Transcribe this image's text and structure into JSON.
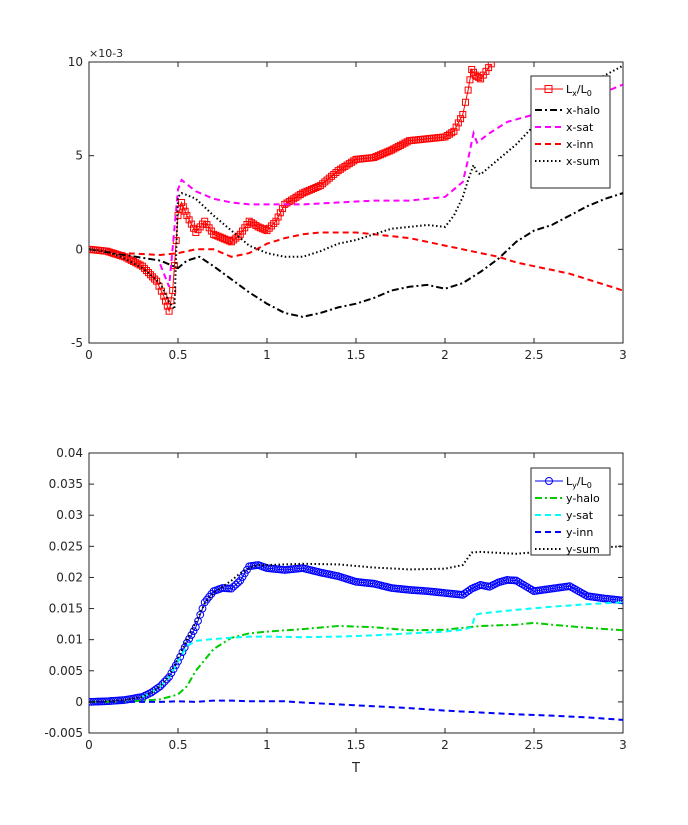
{
  "chart_data": [
    {
      "type": "line",
      "title": "",
      "xlabel": "",
      "ylabel": "",
      "exponent_label": "×10-3",
      "xlim": [
        0,
        3
      ],
      "ylim": [
        -0.005,
        0.01
      ],
      "xticks": [
        0,
        0.5,
        1,
        1.5,
        2,
        2.5,
        3
      ],
      "xtick_labels": [
        "0",
        "0.5",
        "1",
        "1.5",
        "2",
        "2.5",
        "3"
      ],
      "yticks": [
        -0.005,
        0,
        0.005,
        0.01
      ],
      "ytick_labels": [
        "-5",
        "0",
        "5",
        "10"
      ],
      "grid": false,
      "legend_position": "top-right",
      "series": [
        {
          "name": "Lx/L0",
          "name_main": "L",
          "name_sub1": "x",
          "name_mid": "/L",
          "name_sub2": "0",
          "color": "#ff0000",
          "style": "solid",
          "marker": "square",
          "x": [
            0,
            0.1,
            0.2,
            0.3,
            0.38,
            0.42,
            0.45,
            0.47,
            0.5,
            0.52,
            0.55,
            0.6,
            0.65,
            0.7,
            0.75,
            0.8,
            0.85,
            0.9,
            0.95,
            1.0,
            1.05,
            1.1,
            1.15,
            1.2,
            1.3,
            1.4,
            1.5,
            1.6,
            1.7,
            1.8,
            1.9,
            2.0,
            2.05,
            2.1,
            2.13,
            2.15,
            2.17,
            2.2,
            2.23,
            2.26
          ],
          "y": [
            0,
            -0.0001,
            -0.0004,
            -0.0009,
            -0.0017,
            -0.0025,
            -0.0033,
            -0.0022,
            0.0018,
            0.0025,
            0.0018,
            0.0009,
            0.0015,
            0.0008,
            0.0006,
            0.0004,
            0.0008,
            0.0015,
            0.0012,
            0.001,
            0.0015,
            0.0024,
            0.0027,
            0.003,
            0.0034,
            0.0042,
            0.0048,
            0.0049,
            0.0053,
            0.0058,
            0.0059,
            0.006,
            0.0063,
            0.0072,
            0.0085,
            0.0096,
            0.0093,
            0.0091,
            0.0095,
            0.0099
          ]
        },
        {
          "name": "x-halo",
          "color": "#000000",
          "style": "dashdot",
          "x": [
            0,
            0.2,
            0.4,
            0.5,
            0.55,
            0.62,
            0.7,
            0.8,
            0.9,
            1.0,
            1.1,
            1.2,
            1.3,
            1.4,
            1.5,
            1.6,
            1.7,
            1.8,
            1.9,
            2.0,
            2.1,
            2.2,
            2.3,
            2.4,
            2.5,
            2.6,
            2.7,
            2.8,
            2.9,
            3.0
          ],
          "y": [
            0,
            -0.0003,
            -0.0006,
            -0.001,
            -0.0006,
            -0.0004,
            -0.0009,
            -0.0016,
            -0.0023,
            -0.0029,
            -0.0034,
            -0.0036,
            -0.0034,
            -0.0031,
            -0.0029,
            -0.0026,
            -0.0022,
            -0.002,
            -0.0019,
            -0.0021,
            -0.0018,
            -0.0012,
            -0.0005,
            0.0004,
            0.001,
            0.0013,
            0.0018,
            0.0023,
            0.0027,
            0.003
          ]
        },
        {
          "name": "x-sat",
          "color": "#ff00ff",
          "style": "dashed",
          "x": [
            0.4,
            0.45,
            0.5,
            0.52,
            0.6,
            0.7,
            0.8,
            0.9,
            1.0,
            1.1,
            1.2,
            1.4,
            1.6,
            1.8,
            2.0,
            2.1,
            2.13,
            2.16,
            2.18,
            2.25,
            2.35,
            2.5,
            2.7,
            2.85,
            2.95,
            3.0
          ],
          "y": [
            -0.0008,
            -0.002,
            0.0032,
            0.0037,
            0.0031,
            0.0027,
            0.0025,
            0.0024,
            0.0024,
            0.0024,
            0.0024,
            0.0025,
            0.0026,
            0.0026,
            0.0028,
            0.0036,
            0.0048,
            0.0062,
            0.0057,
            0.0062,
            0.0068,
            0.0072,
            0.0078,
            0.0082,
            0.0086,
            0.0088
          ]
        },
        {
          "name": "x-inn",
          "color": "#ff0000",
          "style": "dashed",
          "x": [
            0,
            0.2,
            0.4,
            0.5,
            0.6,
            0.7,
            0.8,
            0.9,
            1.0,
            1.1,
            1.2,
            1.3,
            1.4,
            1.5,
            1.6,
            1.7,
            1.8,
            1.9,
            2.0,
            2.1,
            2.2,
            2.3,
            2.4,
            2.5,
            2.6,
            2.7,
            2.8,
            2.9,
            3.0
          ],
          "y": [
            0,
            -0.0002,
            -0.0003,
            -0.0002,
            0,
            0,
            -0.0004,
            -0.0002,
            0.0003,
            0.0006,
            0.0008,
            0.0009,
            0.0009,
            0.0009,
            0.0008,
            0.0007,
            0.0006,
            0.0004,
            0.0002,
            0,
            -0.0002,
            -0.0004,
            -0.0007,
            -0.0009,
            -0.0011,
            -0.0013,
            -0.0016,
            -0.0019,
            -0.0022
          ]
        },
        {
          "name": "x-sum",
          "color": "#000000",
          "style": "dotted",
          "x": [
            0,
            0.1,
            0.2,
            0.3,
            0.4,
            0.45,
            0.48,
            0.5,
            0.52,
            0.55,
            0.6,
            0.7,
            0.8,
            0.9,
            1.0,
            1.1,
            1.2,
            1.3,
            1.4,
            1.5,
            1.6,
            1.7,
            1.8,
            1.9,
            2.0,
            2.05,
            2.1,
            2.13,
            2.16,
            2.18,
            2.2,
            2.3,
            2.4,
            2.5,
            2.6,
            2.7,
            2.8,
            2.9,
            3.0
          ],
          "y": [
            0,
            -0.0001,
            -0.0005,
            -0.001,
            -0.0018,
            -0.0028,
            -0.0032,
            0.0028,
            0.003,
            0.0029,
            0.0027,
            0.0018,
            0.001,
            0.0002,
            -0.0002,
            -0.0004,
            -0.0004,
            -0.0001,
            0.0003,
            0.0005,
            0.0008,
            0.0011,
            0.0012,
            0.0013,
            0.0012,
            0.0018,
            0.0028,
            0.0037,
            0.0045,
            0.0041,
            0.004,
            0.0048,
            0.0056,
            0.0066,
            0.0077,
            0.0083,
            0.0088,
            0.0093,
            0.0098
          ]
        }
      ]
    },
    {
      "type": "line",
      "title": "",
      "xlabel": "T",
      "ylabel": "",
      "xlim": [
        0,
        3
      ],
      "ylim": [
        -0.005,
        0.04
      ],
      "xticks": [
        0,
        0.5,
        1,
        1.5,
        2,
        2.5,
        3
      ],
      "xtick_labels": [
        "0",
        "0.5",
        "1",
        "1.5",
        "2",
        "2.5",
        "3"
      ],
      "yticks": [
        -0.005,
        0,
        0.005,
        0.01,
        0.015,
        0.02,
        0.025,
        0.03,
        0.035,
        0.04
      ],
      "ytick_labels": [
        "-0.005",
        "0",
        "0.005",
        "0.01",
        "0.015",
        "0.02",
        "0.025",
        "0.03",
        "0.035",
        "0.04"
      ],
      "grid": false,
      "legend_position": "top-right",
      "series": [
        {
          "name": "Ly/L0",
          "name_main": "L",
          "name_sub1": "y",
          "name_mid": "/L",
          "name_sub2": "0",
          "color": "#0000ff",
          "style": "solid",
          "marker": "circle",
          "x": [
            0,
            0.1,
            0.2,
            0.3,
            0.35,
            0.4,
            0.45,
            0.5,
            0.55,
            0.6,
            0.65,
            0.7,
            0.75,
            0.8,
            0.85,
            0.9,
            0.95,
            1.0,
            1.1,
            1.2,
            1.3,
            1.4,
            1.5,
            1.6,
            1.7,
            1.8,
            1.9,
            2.0,
            2.1,
            2.15,
            2.2,
            2.25,
            2.3,
            2.35,
            2.4,
            2.5,
            2.6,
            2.7,
            2.8,
            2.9,
            3.0
          ],
          "y": [
            0,
            0.0001,
            0.0003,
            0.0008,
            0.0015,
            0.0025,
            0.004,
            0.0065,
            0.0095,
            0.012,
            0.016,
            0.0178,
            0.0183,
            0.0182,
            0.0195,
            0.0218,
            0.022,
            0.0215,
            0.0212,
            0.0215,
            0.0208,
            0.0202,
            0.0193,
            0.019,
            0.0183,
            0.018,
            0.0178,
            0.0175,
            0.0172,
            0.0182,
            0.0188,
            0.0185,
            0.0192,
            0.0196,
            0.0195,
            0.0178,
            0.0182,
            0.0186,
            0.017,
            0.0166,
            0.0163
          ]
        },
        {
          "name": "y-halo",
          "color": "#00cc00",
          "style": "dashdot",
          "x": [
            0,
            0.2,
            0.3,
            0.4,
            0.5,
            0.55,
            0.6,
            0.7,
            0.8,
            0.9,
            1.0,
            1.2,
            1.4,
            1.6,
            1.8,
            2.0,
            2.2,
            2.4,
            2.5,
            2.6,
            2.8,
            3.0
          ],
          "y": [
            0,
            0,
            0.0002,
            0.0004,
            0.0012,
            0.0025,
            0.005,
            0.0085,
            0.0103,
            0.011,
            0.0113,
            0.0117,
            0.0122,
            0.012,
            0.0115,
            0.0116,
            0.0122,
            0.0124,
            0.0127,
            0.0124,
            0.0119,
            0.0115
          ]
        },
        {
          "name": "y-sat",
          "color": "#00ffff",
          "style": "dashed",
          "x": [
            0.3,
            0.35,
            0.4,
            0.45,
            0.5,
            0.55,
            0.6,
            0.7,
            0.8,
            0.9,
            1.0,
            1.2,
            1.4,
            1.6,
            1.8,
            2.0,
            2.1,
            2.15,
            2.17,
            2.2,
            2.4,
            2.6,
            2.8,
            3.0
          ],
          "y": [
            0.0008,
            0.0015,
            0.0025,
            0.004,
            0.0065,
            0.009,
            0.0098,
            0.0101,
            0.0103,
            0.0105,
            0.0105,
            0.0104,
            0.0105,
            0.0107,
            0.011,
            0.0113,
            0.0116,
            0.012,
            0.014,
            0.0142,
            0.0148,
            0.0153,
            0.0157,
            0.016
          ]
        },
        {
          "name": "y-inn",
          "color": "#0000ff",
          "style": "dashed",
          "x": [
            0,
            0.2,
            0.4,
            0.5,
            0.6,
            0.7,
            0.8,
            0.9,
            1.0,
            1.1,
            1.2,
            1.4,
            1.6,
            1.8,
            2.0,
            2.2,
            2.4,
            2.6,
            2.8,
            3.0
          ],
          "y": [
            0,
            0,
            0,
            0.0001,
            0,
            0.0002,
            0.0002,
            0.0001,
            0.0001,
            0.0001,
            -0.0001,
            -0.0004,
            -0.0007,
            -0.001,
            -0.0014,
            -0.0017,
            -0.002,
            -0.0022,
            -0.0025,
            -0.0029
          ]
        },
        {
          "name": "y-sum",
          "color": "#000000",
          "style": "dotted",
          "x": [
            0,
            0.1,
            0.2,
            0.3,
            0.35,
            0.4,
            0.45,
            0.5,
            0.55,
            0.6,
            0.65,
            0.7,
            0.75,
            0.8,
            0.85,
            0.9,
            0.95,
            1.0,
            1.2,
            1.4,
            1.6,
            1.8,
            2.0,
            2.1,
            2.15,
            2.2,
            2.4,
            2.6,
            2.8,
            3.0
          ],
          "y": [
            0,
            0.0001,
            0.0003,
            0.0008,
            0.0015,
            0.0025,
            0.0042,
            0.007,
            0.01,
            0.0128,
            0.0158,
            0.0175,
            0.0185,
            0.0195,
            0.0207,
            0.0215,
            0.022,
            0.022,
            0.0222,
            0.0221,
            0.0216,
            0.0213,
            0.0214,
            0.022,
            0.024,
            0.0241,
            0.0238,
            0.0243,
            0.0247,
            0.025
          ]
        }
      ]
    }
  ]
}
